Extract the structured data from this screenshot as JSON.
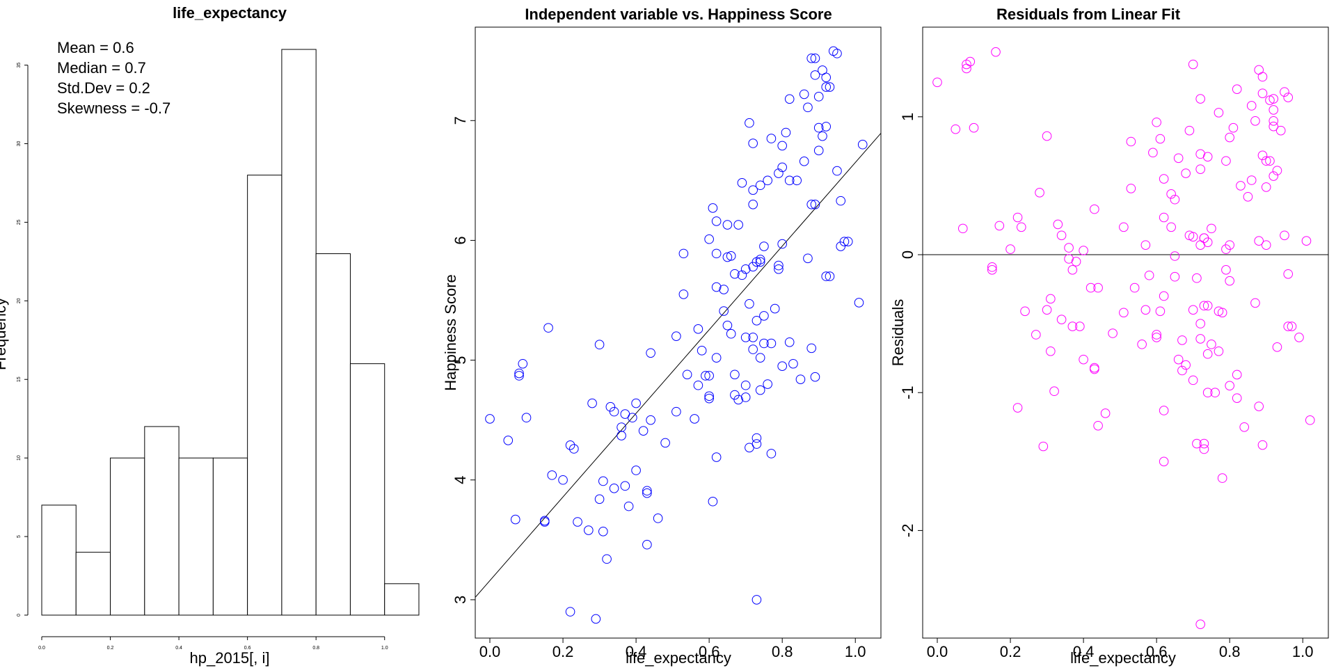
{
  "chart_data": [
    {
      "type": "bar",
      "title": "life_expectancy",
      "xlabel": "hp_2015[, i]",
      "ylabel": "Frequency",
      "xlim": [
        0,
        1.1
      ],
      "ylim": [
        0,
        36
      ],
      "bins": [
        {
          "from": 0.0,
          "to": 0.1,
          "count": 7
        },
        {
          "from": 0.1,
          "to": 0.2,
          "count": 4
        },
        {
          "from": 0.2,
          "to": 0.3,
          "count": 10
        },
        {
          "from": 0.3,
          "to": 0.4,
          "count": 12
        },
        {
          "from": 0.4,
          "to": 0.5,
          "count": 10
        },
        {
          "from": 0.5,
          "to": 0.6,
          "count": 10
        },
        {
          "from": 0.6,
          "to": 0.7,
          "count": 28
        },
        {
          "from": 0.7,
          "to": 0.8,
          "count": 36
        },
        {
          "from": 0.8,
          "to": 0.9,
          "count": 23
        },
        {
          "from": 0.9,
          "to": 1.0,
          "count": 16
        },
        {
          "from": 1.0,
          "to": 1.1,
          "count": 2
        }
      ],
      "x_ticks": [
        "0.0",
        "0.2",
        "0.4",
        "0.6",
        "0.8",
        "1.0"
      ],
      "y_ticks": [
        "0",
        "5",
        "10",
        "15",
        "20",
        "25",
        "30",
        "35"
      ],
      "annotations": [
        "Mean = 0.6",
        "Median = 0.7",
        "Std.Dev = 0.2",
        "Skewness = -0.7"
      ],
      "bar_fill": "#ffffff",
      "bar_stroke": "#000000"
    },
    {
      "type": "scatter",
      "title": "Independent variable vs. Happiness Score",
      "xlabel": "life_expectancy",
      "ylabel": "Happiness Score",
      "xlim": [
        -0.04,
        1.07
      ],
      "ylim": [
        2.68,
        7.78
      ],
      "x_ticks": [
        "0.0",
        "0.2",
        "0.4",
        "0.6",
        "0.8",
        "1.0"
      ],
      "y_ticks": [
        "3",
        "4",
        "5",
        "6",
        "7"
      ],
      "point_color": "#0000ff",
      "fit_line": {
        "intercept": 3.16,
        "slope": 3.49,
        "color": "#000000"
      },
      "points": [
        [
          0.0,
          4.51
        ],
        [
          0.05,
          4.33
        ],
        [
          0.07,
          3.67
        ],
        [
          0.08,
          4.89
        ],
        [
          0.08,
          4.87
        ],
        [
          0.09,
          4.97
        ],
        [
          0.1,
          4.52
        ],
        [
          0.15,
          3.66
        ],
        [
          0.15,
          3.65
        ],
        [
          0.16,
          5.27
        ],
        [
          0.17,
          4.04
        ],
        [
          0.2,
          4.0
        ],
        [
          0.22,
          2.9
        ],
        [
          0.22,
          4.29
        ],
        [
          0.23,
          4.26
        ],
        [
          0.24,
          3.65
        ],
        [
          0.27,
          3.58
        ],
        [
          0.28,
          4.64
        ],
        [
          0.29,
          2.84
        ],
        [
          0.3,
          3.84
        ],
        [
          0.3,
          5.13
        ],
        [
          0.31,
          3.57
        ],
        [
          0.31,
          3.99
        ],
        [
          0.32,
          3.34
        ],
        [
          0.33,
          4.61
        ],
        [
          0.34,
          4.57
        ],
        [
          0.34,
          3.93
        ],
        [
          0.36,
          4.44
        ],
        [
          0.36,
          4.37
        ],
        [
          0.37,
          3.95
        ],
        [
          0.37,
          4.55
        ],
        [
          0.38,
          3.78
        ],
        [
          0.39,
          4.52
        ],
        [
          0.4,
          4.08
        ],
        [
          0.4,
          4.64
        ],
        [
          0.42,
          4.41
        ],
        [
          0.43,
          3.46
        ],
        [
          0.43,
          3.91
        ],
        [
          0.43,
          3.89
        ],
        [
          0.44,
          5.06
        ],
        [
          0.44,
          4.5
        ],
        [
          0.46,
          3.68
        ],
        [
          0.48,
          4.31
        ],
        [
          0.51,
          4.57
        ],
        [
          0.51,
          5.2
        ],
        [
          0.53,
          5.55
        ],
        [
          0.53,
          5.89
        ],
        [
          0.54,
          4.88
        ],
        [
          0.56,
          4.51
        ],
        [
          0.57,
          5.26
        ],
        [
          0.57,
          4.79
        ],
        [
          0.58,
          5.08
        ],
        [
          0.59,
          4.87
        ],
        [
          0.6,
          4.87
        ],
        [
          0.6,
          6.01
        ],
        [
          0.6,
          4.68
        ],
        [
          0.6,
          4.7
        ],
        [
          0.61,
          6.27
        ],
        [
          0.61,
          3.82
        ],
        [
          0.62,
          5.02
        ],
        [
          0.62,
          4.19
        ],
        [
          0.62,
          5.61
        ],
        [
          0.62,
          5.89
        ],
        [
          0.62,
          6.16
        ],
        [
          0.64,
          5.59
        ],
        [
          0.64,
          5.41
        ],
        [
          0.65,
          5.86
        ],
        [
          0.65,
          5.29
        ],
        [
          0.65,
          6.13
        ],
        [
          0.66,
          5.22
        ],
        [
          0.66,
          5.87
        ],
        [
          0.67,
          4.71
        ],
        [
          0.67,
          4.88
        ],
        [
          0.67,
          5.72
        ],
        [
          0.68,
          6.13
        ],
        [
          0.68,
          4.67
        ],
        [
          0.69,
          5.71
        ],
        [
          0.69,
          6.48
        ],
        [
          0.7,
          4.79
        ],
        [
          0.7,
          4.69
        ],
        [
          0.7,
          5.19
        ],
        [
          0.7,
          5.76
        ],
        [
          0.71,
          6.98
        ],
        [
          0.71,
          4.27
        ],
        [
          0.71,
          5.47
        ],
        [
          0.72,
          6.81
        ],
        [
          0.72,
          6.3
        ],
        [
          0.72,
          5.78
        ],
        [
          0.72,
          5.09
        ],
        [
          0.72,
          6.42
        ],
        [
          0.72,
          5.19
        ],
        [
          0.73,
          4.3
        ],
        [
          0.73,
          4.35
        ],
        [
          0.73,
          5.33
        ],
        [
          0.73,
          3.0
        ],
        [
          0.73,
          5.82
        ],
        [
          0.74,
          5.82
        ],
        [
          0.74,
          6.46
        ],
        [
          0.74,
          4.75
        ],
        [
          0.74,
          5.84
        ],
        [
          0.74,
          5.02
        ],
        [
          0.75,
          5.95
        ],
        [
          0.75,
          5.37
        ],
        [
          0.75,
          5.14
        ],
        [
          0.76,
          6.5
        ],
        [
          0.76,
          4.8
        ],
        [
          0.77,
          6.85
        ],
        [
          0.77,
          5.14
        ],
        [
          0.77,
          4.22
        ],
        [
          0.78,
          5.43
        ],
        [
          0.79,
          5.76
        ],
        [
          0.79,
          5.79
        ],
        [
          0.79,
          6.56
        ],
        [
          0.8,
          6.61
        ],
        [
          0.8,
          6.79
        ],
        [
          0.8,
          5.97
        ],
        [
          0.8,
          4.95
        ],
        [
          0.81,
          6.9
        ],
        [
          0.82,
          7.18
        ],
        [
          0.82,
          6.5
        ],
        [
          0.82,
          5.15
        ],
        [
          0.83,
          4.97
        ],
        [
          0.84,
          6.5
        ],
        [
          0.85,
          4.84
        ],
        [
          0.86,
          6.66
        ],
        [
          0.86,
          7.22
        ],
        [
          0.87,
          7.11
        ],
        [
          0.87,
          5.85
        ],
        [
          0.88,
          6.3
        ],
        [
          0.88,
          5.1
        ],
        [
          0.88,
          7.52
        ],
        [
          0.89,
          7.52
        ],
        [
          0.89,
          7.38
        ],
        [
          0.89,
          6.3
        ],
        [
          0.89,
          4.86
        ],
        [
          0.9,
          6.94
        ],
        [
          0.9,
          6.75
        ],
        [
          0.9,
          7.2
        ],
        [
          0.91,
          6.87
        ],
        [
          0.91,
          7.42
        ],
        [
          0.92,
          6.95
        ],
        [
          0.92,
          7.36
        ],
        [
          0.92,
          7.28
        ],
        [
          0.92,
          5.7
        ],
        [
          0.93,
          5.7
        ],
        [
          0.93,
          7.28
        ],
        [
          0.94,
          7.58
        ],
        [
          0.95,
          7.56
        ],
        [
          0.95,
          6.58
        ],
        [
          0.96,
          5.95
        ],
        [
          0.96,
          6.33
        ],
        [
          0.97,
          5.99
        ],
        [
          0.98,
          5.99
        ],
        [
          1.01,
          5.48
        ],
        [
          1.02,
          6.8
        ]
      ]
    },
    {
      "type": "scatter",
      "title": "Residuals from Linear Fit",
      "xlabel": "life_expectancy",
      "ylabel": "Residuals",
      "xlim": [
        -0.04,
        1.07
      ],
      "ylim": [
        -2.78,
        1.65
      ],
      "x_ticks": [
        "0.0",
        "0.2",
        "0.4",
        "0.6",
        "0.8",
        "1.0"
      ],
      "y_ticks": [
        "-2",
        "-1",
        "0",
        "1"
      ],
      "point_color": "#ff00ff",
      "zero_line": 0,
      "points": [
        [
          0.0,
          1.25
        ],
        [
          0.05,
          0.91
        ],
        [
          0.07,
          0.19
        ],
        [
          0.08,
          1.38
        ],
        [
          0.08,
          1.35
        ],
        [
          0.09,
          1.4
        ],
        [
          0.1,
          0.92
        ],
        [
          0.15,
          -0.09
        ],
        [
          0.15,
          -0.11
        ],
        [
          0.16,
          1.47
        ],
        [
          0.17,
          0.21
        ],
        [
          0.2,
          0.04
        ],
        [
          0.22,
          -1.11
        ],
        [
          0.22,
          0.27
        ],
        [
          0.23,
          0.2
        ],
        [
          0.24,
          -0.41
        ],
        [
          0.27,
          -0.58
        ],
        [
          0.28,
          0.45
        ],
        [
          0.29,
          -1.39
        ],
        [
          0.3,
          -0.4
        ],
        [
          0.3,
          0.86
        ],
        [
          0.31,
          -0.7
        ],
        [
          0.31,
          -0.32
        ],
        [
          0.32,
          -0.99
        ],
        [
          0.33,
          0.22
        ],
        [
          0.34,
          0.14
        ],
        [
          0.34,
          -0.47
        ],
        [
          0.36,
          0.05
        ],
        [
          0.36,
          -0.03
        ],
        [
          0.37,
          -0.11
        ],
        [
          0.37,
          -0.52
        ],
        [
          0.38,
          -0.05
        ],
        [
          0.39,
          -0.52
        ],
        [
          0.4,
          0.03
        ],
        [
          0.4,
          -0.76
        ],
        [
          0.42,
          -0.24
        ],
        [
          0.43,
          0.33
        ],
        [
          0.43,
          -0.83
        ],
        [
          0.43,
          -0.82
        ],
        [
          0.44,
          -0.24
        ],
        [
          0.44,
          -1.24
        ],
        [
          0.46,
          -1.15
        ],
        [
          0.48,
          -0.57
        ],
        [
          0.51,
          -0.42
        ],
        [
          0.51,
          0.2
        ],
        [
          0.53,
          0.82
        ],
        [
          0.53,
          0.48
        ],
        [
          0.54,
          -0.24
        ],
        [
          0.56,
          -0.65
        ],
        [
          0.57,
          -0.4
        ],
        [
          0.57,
          0.07
        ],
        [
          0.58,
          -0.15
        ],
        [
          0.59,
          0.74
        ],
        [
          0.6,
          0.96
        ],
        [
          0.6,
          -0.58
        ],
        [
          0.6,
          -0.6
        ],
        [
          0.61,
          0.84
        ],
        [
          0.61,
          -0.41
        ],
        [
          0.62,
          -1.13
        ],
        [
          0.62,
          -1.5
        ],
        [
          0.62,
          0.27
        ],
        [
          0.62,
          0.55
        ],
        [
          0.62,
          -0.3
        ],
        [
          0.64,
          0.2
        ],
        [
          0.64,
          0.44
        ],
        [
          0.65,
          -0.01
        ],
        [
          0.65,
          0.4
        ],
        [
          0.65,
          -0.16
        ],
        [
          0.66,
          -0.76
        ],
        [
          0.66,
          0.7
        ],
        [
          0.67,
          -0.62
        ],
        [
          0.67,
          -0.84
        ],
        [
          0.68,
          0.59
        ],
        [
          0.68,
          -0.8
        ],
        [
          0.69,
          0.9
        ],
        [
          0.69,
          0.14
        ],
        [
          0.7,
          1.38
        ],
        [
          0.7,
          -0.91
        ],
        [
          0.7,
          -0.4
        ],
        [
          0.7,
          0.13
        ],
        [
          0.71,
          -0.17
        ],
        [
          0.71,
          -1.37
        ],
        [
          0.72,
          1.13
        ],
        [
          0.72,
          -0.5
        ],
        [
          0.72,
          0.62
        ],
        [
          0.72,
          0.07
        ],
        [
          0.72,
          0.73
        ],
        [
          0.72,
          -0.61
        ],
        [
          0.72,
          -2.68
        ],
        [
          0.73,
          -1.41
        ],
        [
          0.73,
          -1.37
        ],
        [
          0.73,
          0.12
        ],
        [
          0.73,
          -0.37
        ],
        [
          0.73,
          0.12
        ],
        [
          0.74,
          -0.72
        ],
        [
          0.74,
          -1.0
        ],
        [
          0.74,
          0.09
        ],
        [
          0.74,
          0.71
        ],
        [
          0.74,
          -0.37
        ],
        [
          0.75,
          0.19
        ],
        [
          0.75,
          -0.65
        ],
        [
          0.76,
          -1.0
        ],
        [
          0.77,
          1.03
        ],
        [
          0.77,
          -0.41
        ],
        [
          0.77,
          -0.7
        ],
        [
          0.78,
          -1.62
        ],
        [
          0.78,
          -0.42
        ],
        [
          0.79,
          -0.11
        ],
        [
          0.79,
          0.04
        ],
        [
          0.79,
          0.68
        ],
        [
          0.8,
          -0.95
        ],
        [
          0.8,
          0.07
        ],
        [
          0.8,
          0.85
        ],
        [
          0.8,
          -0.19
        ],
        [
          0.81,
          0.92
        ],
        [
          0.82,
          -0.87
        ],
        [
          0.82,
          1.2
        ],
        [
          0.82,
          -1.04
        ],
        [
          0.83,
          0.5
        ],
        [
          0.84,
          -1.25
        ],
        [
          0.85,
          0.42
        ],
        [
          0.86,
          1.08
        ],
        [
          0.86,
          0.54
        ],
        [
          0.87,
          0.97
        ],
        [
          0.87,
          -0.35
        ],
        [
          0.88,
          0.1
        ],
        [
          0.88,
          1.34
        ],
        [
          0.88,
          -1.1
        ],
        [
          0.89,
          0.72
        ],
        [
          0.89,
          -1.38
        ],
        [
          0.89,
          1.29
        ],
        [
          0.89,
          1.17
        ],
        [
          0.9,
          0.07
        ],
        [
          0.9,
          0.68
        ],
        [
          0.9,
          0.49
        ],
        [
          0.91,
          1.12
        ],
        [
          0.91,
          0.68
        ],
        [
          0.92,
          0.57
        ],
        [
          0.92,
          1.13
        ],
        [
          0.92,
          0.93
        ],
        [
          0.92,
          1.05
        ],
        [
          0.92,
          0.97
        ],
        [
          0.93,
          -0.67
        ],
        [
          0.93,
          0.61
        ],
        [
          0.94,
          0.9
        ],
        [
          0.95,
          1.18
        ],
        [
          0.95,
          0.14
        ],
        [
          0.96,
          -0.14
        ],
        [
          0.96,
          1.14
        ],
        [
          0.96,
          -0.52
        ],
        [
          0.97,
          -0.52
        ],
        [
          0.99,
          -0.6
        ],
        [
          1.01,
          0.1
        ],
        [
          1.02,
          -1.2
        ]
      ]
    }
  ]
}
